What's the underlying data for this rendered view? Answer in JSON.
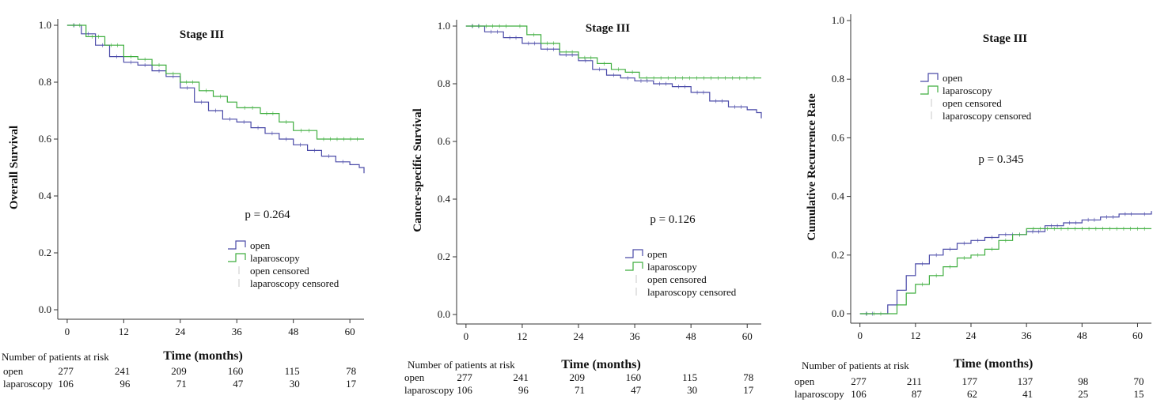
{
  "colors": {
    "open": "#4a4aa8",
    "laparoscopy": "#3fae3f"
  },
  "chart_data": [
    {
      "type": "line",
      "title": "Stage III",
      "ylabel": "Overall Survival",
      "xlabel": "Time (months)",
      "xticks": [
        0,
        12,
        24,
        36,
        48,
        60
      ],
      "yticks": [
        "0.0",
        "0.2",
        "0.4",
        "0.6",
        "0.8",
        "1.0"
      ],
      "xlim": [
        -2,
        63
      ],
      "ylim": [
        0,
        1.0
      ],
      "p_value": "p = 0.264",
      "legend_position": "lower-right",
      "legend": [
        "open",
        "laparoscopy",
        "open censored",
        "laparoscopy censored"
      ],
      "series": [
        {
          "name": "open",
          "points": [
            [
              0,
              1.0
            ],
            [
              3,
              0.97
            ],
            [
              6,
              0.93
            ],
            [
              9,
              0.89
            ],
            [
              12,
              0.87
            ],
            [
              15,
              0.86
            ],
            [
              18,
              0.84
            ],
            [
              21,
              0.82
            ],
            [
              24,
              0.78
            ],
            [
              27,
              0.73
            ],
            [
              30,
              0.7
            ],
            [
              33,
              0.67
            ],
            [
              36,
              0.66
            ],
            [
              39,
              0.64
            ],
            [
              42,
              0.62
            ],
            [
              45,
              0.6
            ],
            [
              48,
              0.58
            ],
            [
              51,
              0.56
            ],
            [
              54,
              0.54
            ],
            [
              57,
              0.52
            ],
            [
              60,
              0.51
            ],
            [
              62,
              0.5
            ],
            [
              63,
              0.48
            ]
          ]
        },
        {
          "name": "laparoscopy",
          "points": [
            [
              0,
              1.0
            ],
            [
              4,
              0.96
            ],
            [
              8,
              0.93
            ],
            [
              12,
              0.89
            ],
            [
              15,
              0.88
            ],
            [
              18,
              0.86
            ],
            [
              21,
              0.83
            ],
            [
              24,
              0.8
            ],
            [
              28,
              0.77
            ],
            [
              31,
              0.75
            ],
            [
              34,
              0.73
            ],
            [
              36,
              0.71
            ],
            [
              41,
              0.69
            ],
            [
              45,
              0.66
            ],
            [
              48,
              0.63
            ],
            [
              53,
              0.6
            ],
            [
              63,
              0.6
            ]
          ]
        }
      ],
      "risk_table": {
        "header": "Number of patients at risk",
        "rows": [
          {
            "label": "open",
            "values": [
              "277",
              "241",
              "209",
              "160",
              "115",
              "78"
            ]
          },
          {
            "label": "laparoscopy",
            "values": [
              "106",
              "96",
              "71",
              "47",
              "30",
              "17"
            ]
          }
        ]
      }
    },
    {
      "type": "line",
      "title": "Stage III",
      "ylabel": "Cancer-specific Survival",
      "xlabel": "Time (months)",
      "xticks": [
        0,
        12,
        24,
        36,
        48,
        60
      ],
      "yticks": [
        "0.0",
        "0.2",
        "0.4",
        "0.6",
        "0.8",
        "1.0"
      ],
      "xlim": [
        -2,
        63
      ],
      "ylim": [
        0,
        1.0
      ],
      "p_value": "p = 0.126",
      "legend_position": "lower-right",
      "legend": [
        "open",
        "laparoscopy",
        "open censored",
        "laparoscopy censored"
      ],
      "series": [
        {
          "name": "open",
          "points": [
            [
              0,
              1.0
            ],
            [
              4,
              0.98
            ],
            [
              8,
              0.96
            ],
            [
              12,
              0.94
            ],
            [
              16,
              0.92
            ],
            [
              20,
              0.9
            ],
            [
              24,
              0.88
            ],
            [
              27,
              0.85
            ],
            [
              30,
              0.83
            ],
            [
              33,
              0.82
            ],
            [
              36,
              0.81
            ],
            [
              40,
              0.8
            ],
            [
              44,
              0.79
            ],
            [
              48,
              0.77
            ],
            [
              52,
              0.74
            ],
            [
              56,
              0.72
            ],
            [
              60,
              0.71
            ],
            [
              62,
              0.7
            ],
            [
              63,
              0.68
            ]
          ]
        },
        {
          "name": "laparoscopy",
          "points": [
            [
              0,
              1.0
            ],
            [
              10,
              1.0
            ],
            [
              13,
              0.97
            ],
            [
              16,
              0.94
            ],
            [
              20,
              0.91
            ],
            [
              24,
              0.89
            ],
            [
              28,
              0.87
            ],
            [
              31,
              0.85
            ],
            [
              34,
              0.84
            ],
            [
              37,
              0.82
            ],
            [
              63,
              0.82
            ]
          ]
        }
      ],
      "risk_table": {
        "header": "Number of patients at risk",
        "rows": [
          {
            "label": "open",
            "values": [
              "277",
              "241",
              "209",
              "160",
              "115",
              "78"
            ]
          },
          {
            "label": "laparoscopy",
            "values": [
              "106",
              "96",
              "71",
              "47",
              "30",
              "17"
            ]
          }
        ]
      }
    },
    {
      "type": "line",
      "title": "Stage III",
      "ylabel": "Cumulative Recurrence Rate",
      "xlabel": "Time (months)",
      "xticks": [
        0,
        12,
        24,
        36,
        48,
        60
      ],
      "yticks": [
        "0.0",
        "0.2",
        "0.4",
        "0.6",
        "0.8",
        "1.0"
      ],
      "xlim": [
        -2,
        63
      ],
      "ylim": [
        0,
        1.0
      ],
      "p_value": "p = 0.345",
      "legend_position": "upper-center",
      "legend": [
        "open",
        "laparoscopy",
        "open censored",
        "laparoscopy censored"
      ],
      "series": [
        {
          "name": "open",
          "points": [
            [
              0,
              0.0
            ],
            [
              4,
              0.0
            ],
            [
              6,
              0.03
            ],
            [
              8,
              0.08
            ],
            [
              10,
              0.13
            ],
            [
              12,
              0.17
            ],
            [
              15,
              0.2
            ],
            [
              18,
              0.22
            ],
            [
              21,
              0.24
            ],
            [
              24,
              0.25
            ],
            [
              27,
              0.26
            ],
            [
              30,
              0.27
            ],
            [
              36,
              0.28
            ],
            [
              40,
              0.3
            ],
            [
              44,
              0.31
            ],
            [
              48,
              0.32
            ],
            [
              52,
              0.33
            ],
            [
              56,
              0.34
            ],
            [
              60,
              0.34
            ],
            [
              63,
              0.35
            ]
          ]
        },
        {
          "name": "laparoscopy",
          "points": [
            [
              0,
              0.0
            ],
            [
              6,
              0.0
            ],
            [
              8,
              0.03
            ],
            [
              10,
              0.07
            ],
            [
              12,
              0.1
            ],
            [
              15,
              0.13
            ],
            [
              18,
              0.16
            ],
            [
              21,
              0.19
            ],
            [
              24,
              0.2
            ],
            [
              27,
              0.22
            ],
            [
              30,
              0.25
            ],
            [
              33,
              0.27
            ],
            [
              36,
              0.29
            ],
            [
              63,
              0.29
            ]
          ]
        }
      ],
      "risk_table": {
        "header": "Number of patients at risk",
        "rows": [
          {
            "label": "open",
            "values": [
              "277",
              "211",
              "177",
              "137",
              "98",
              "70"
            ]
          },
          {
            "label": "laparoscopy",
            "values": [
              "106",
              "87",
              "62",
              "41",
              "25",
              "15"
            ]
          }
        ]
      }
    }
  ]
}
